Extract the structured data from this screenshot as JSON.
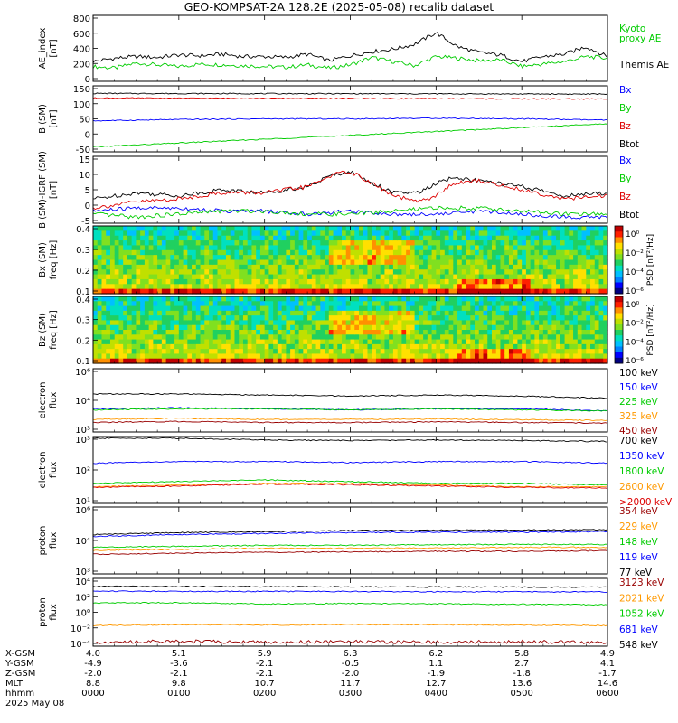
{
  "title": "GEO-KOMPSAT-2A 128.2E (2025-05-08) recalib dataset",
  "colors": {
    "black": "#000000",
    "blue": "#0000ff",
    "green": "#00cc00",
    "red": "#dd0000",
    "orange": "#ff9900",
    "darkred": "#990000",
    "limegreen": "#22dd22"
  },
  "chart_data": [
    {
      "id": "ae",
      "type": "line",
      "ylabel": [
        "AE_index",
        "[nT]"
      ],
      "ylim": [
        0,
        800
      ],
      "yticks": [
        "800",
        "600",
        "400",
        "200",
        "0"
      ],
      "legend": [
        {
          "text": "Kyoto",
          "color": "green"
        },
        {
          "text": "proxy AE",
          "color": "green"
        },
        {
          "text": "Themis AE",
          "color": "black"
        }
      ],
      "series": [
        {
          "name": "Kyoto proxy AE",
          "color": "green",
          "x": [
            0,
            0.25,
            0.5,
            0.75,
            1.0,
            1.25,
            1.5,
            1.75,
            2.0,
            2.25,
            2.5,
            2.75,
            3.0,
            3.25,
            3.5,
            3.75,
            4.0,
            4.25,
            4.5,
            4.75,
            5.0,
            5.25,
            5.5,
            5.75,
            6.0
          ],
          "y": [
            180,
            160,
            220,
            200,
            180,
            210,
            200,
            190,
            180,
            170,
            200,
            160,
            200,
            290,
            240,
            190,
            300,
            280,
            250,
            260,
            180,
            210,
            240,
            300,
            280
          ]
        },
        {
          "name": "Themis AE",
          "color": "black",
          "x": [
            0,
            0.25,
            0.5,
            0.75,
            1.0,
            1.25,
            1.5,
            1.75,
            2.0,
            2.25,
            2.5,
            2.75,
            3.0,
            3.25,
            3.5,
            3.75,
            4.0,
            4.25,
            4.5,
            4.75,
            5.0,
            5.25,
            5.5,
            5.75,
            6.0
          ],
          "y": [
            240,
            280,
            300,
            290,
            320,
            310,
            330,
            300,
            300,
            290,
            330,
            250,
            310,
            360,
            390,
            450,
            590,
            420,
            350,
            320,
            240,
            300,
            330,
            420,
            300
          ]
        }
      ]
    },
    {
      "id": "bsm",
      "type": "line",
      "ylabel": [
        "B (SM)",
        "[nT]"
      ],
      "ylim": [
        -60,
        140
      ],
      "yticks": [
        "150",
        "100",
        "50",
        "0",
        "-50"
      ],
      "legend": [
        {
          "text": "Bx",
          "color": "blue"
        },
        {
          "text": "By",
          "color": "green"
        },
        {
          "text": "Bz",
          "color": "red"
        },
        {
          "text": "Btot",
          "color": "black"
        }
      ],
      "series": [
        {
          "name": "Btot",
          "color": "black",
          "x": [
            0,
            6
          ],
          "y": [
            117,
            115
          ]
        },
        {
          "name": "Bz",
          "color": "red",
          "x": [
            0,
            6
          ],
          "y": [
            103,
            100
          ]
        },
        {
          "name": "Bx",
          "color": "blue",
          "x": [
            0,
            1,
            2,
            3,
            4,
            5,
            6
          ],
          "y": [
            34,
            38,
            40,
            40,
            42,
            40,
            36
          ]
        },
        {
          "name": "By",
          "color": "green",
          "x": [
            0,
            6
          ],
          "y": [
            -45,
            25
          ]
        }
      ]
    },
    {
      "id": "bdiff",
      "type": "line",
      "ylabel": [
        "B (SM)-IGRF (SM)",
        "[nT]"
      ],
      "ylim": [
        -6,
        16
      ],
      "yticks": [
        "15",
        "10",
        "5",
        "0",
        "-5"
      ],
      "legend": [
        {
          "text": "Bx",
          "color": "blue"
        },
        {
          "text": "By",
          "color": "green"
        },
        {
          "text": "Bz",
          "color": "red"
        },
        {
          "text": "Btot",
          "color": "black"
        }
      ],
      "series": [
        {
          "name": "Btot",
          "color": "black",
          "x": [
            0,
            0.5,
            1.0,
            1.5,
            2.0,
            2.5,
            2.8,
            3.0,
            3.2,
            3.5,
            3.8,
            4.0,
            4.2,
            4.5,
            5.0,
            5.5,
            6.0
          ],
          "y": [
            2,
            4,
            3,
            5,
            4,
            6,
            10,
            11,
            8,
            4,
            4,
            7,
            9,
            8,
            6,
            3,
            4
          ]
        },
        {
          "name": "Bz",
          "color": "red",
          "x": [
            0,
            0.5,
            1.0,
            1.5,
            2.0,
            2.5,
            2.8,
            3.0,
            3.2,
            3.5,
            3.8,
            4.0,
            4.2,
            4.5,
            5.0,
            5.5,
            6.0
          ],
          "y": [
            -1,
            1,
            2,
            4,
            4,
            6,
            10,
            11,
            8,
            3,
            1,
            3,
            7,
            8,
            5,
            2,
            3
          ]
        },
        {
          "name": "Bx",
          "color": "blue",
          "x": [
            0,
            0.5,
            1.0,
            1.5,
            2.0,
            2.5,
            3.0,
            3.5,
            4.0,
            4.5,
            5.0,
            5.5,
            6.0
          ],
          "y": [
            -2,
            -1,
            -1,
            -2,
            -2,
            -3,
            -2,
            -3,
            -3,
            -2,
            -3,
            -4,
            -4
          ]
        },
        {
          "name": "By",
          "color": "green",
          "x": [
            0,
            0.5,
            1.0,
            1.5,
            2.0,
            2.5,
            3.0,
            3.5,
            4.0,
            4.5,
            5.0,
            5.5,
            6.0
          ],
          "y": [
            -3,
            -4,
            -3,
            -2,
            -2,
            -3,
            -3,
            -2,
            -1,
            -1,
            -2,
            -3,
            -3
          ]
        }
      ]
    },
    {
      "id": "bxspec",
      "type": "heatmap",
      "ylabel": [
        "Bx (SM)",
        "freq [Hz]"
      ],
      "ylim": [
        0,
        0.5
      ],
      "yticks": [
        "0.4",
        "0.3",
        "0.2",
        "0.1"
      ],
      "colorbar": {
        "label": "PSD [nT²/Hz]",
        "ticks": [
          "10⁰",
          "10⁻²",
          "10⁻⁴",
          "10⁻⁶"
        ]
      }
    },
    {
      "id": "bzspec",
      "type": "heatmap",
      "ylabel": [
        "Bz (SM)",
        "freq [Hz]"
      ],
      "ylim": [
        0,
        0.5
      ],
      "yticks": [
        "0.4",
        "0.3",
        "0.2",
        "0.1"
      ],
      "colorbar": {
        "label": "PSD [nT²/Hz]",
        "ticks": [
          "10⁰",
          "10⁻²",
          "10⁻⁴",
          "10⁻⁶"
        ]
      }
    },
    {
      "id": "ele1",
      "type": "line",
      "log": true,
      "ylabel": [
        "electron",
        "flux"
      ],
      "ylim": [
        3,
        6
      ],
      "yticks": [
        "10⁶",
        "10⁴",
        "10³"
      ],
      "legend": [
        {
          "text": "100 keV",
          "color": "black"
        },
        {
          "text": "150 keV",
          "color": "blue"
        },
        {
          "text": "225 keV",
          "color": "green"
        },
        {
          "text": "325 keV",
          "color": "orange"
        },
        {
          "text": "450 keV",
          "color": "darkred"
        }
      ],
      "series": [
        {
          "name": "100 keV",
          "color": "black",
          "x": [
            0,
            1,
            2,
            3,
            4,
            5,
            6
          ],
          "y": [
            4.8,
            4.8,
            4.75,
            4.7,
            4.75,
            4.7,
            4.6
          ]
        },
        {
          "name": "150 keV",
          "color": "blue",
          "x": [
            0,
            1,
            2,
            3,
            4,
            5,
            6
          ],
          "y": [
            4.1,
            4.15,
            4.1,
            4.05,
            4.1,
            4.1,
            4.0
          ]
        },
        {
          "name": "225 keV",
          "color": "green",
          "x": [
            0,
            1,
            2,
            3,
            4,
            5,
            6
          ],
          "y": [
            4.05,
            4.1,
            4.1,
            4.05,
            4.1,
            4.05,
            4.0
          ]
        },
        {
          "name": "325 keV",
          "color": "orange",
          "x": [
            0,
            1,
            2,
            3,
            4,
            5,
            6
          ],
          "y": [
            3.6,
            3.65,
            3.6,
            3.6,
            3.62,
            3.58,
            3.55
          ]
        },
        {
          "name": "450 keV",
          "color": "darkred",
          "x": [
            0,
            1,
            2,
            3,
            4,
            5,
            6
          ],
          "y": [
            3.45,
            3.5,
            3.45,
            3.45,
            3.48,
            3.45,
            3.42
          ]
        }
      ]
    },
    {
      "id": "ele2",
      "type": "line",
      "log": true,
      "ylabel": [
        "electron",
        "flux"
      ],
      "ylim": [
        1,
        3
      ],
      "yticks": [
        "10³",
        "10²",
        "10¹"
      ],
      "legend": [
        {
          "text": "700 keV",
          "color": "black"
        },
        {
          "text": "1350 keV",
          "color": "blue"
        },
        {
          "text": "1800 keV",
          "color": "green"
        },
        {
          "text": "2600 keV",
          "color": "orange"
        },
        {
          "text": ">2000 keV",
          "color": "red"
        }
      ],
      "series": [
        {
          "name": "700 keV",
          "color": "black",
          "x": [
            0,
            1,
            2,
            3,
            4,
            5,
            6
          ],
          "y": [
            2.95,
            2.95,
            2.9,
            2.88,
            2.9,
            2.88,
            2.85
          ]
        },
        {
          "name": "1350 keV",
          "color": "blue",
          "x": [
            0,
            1,
            2,
            3,
            4,
            5,
            6
          ],
          "y": [
            2.2,
            2.25,
            2.25,
            2.22,
            2.25,
            2.25,
            2.2
          ]
        },
        {
          "name": "1800 keV",
          "color": "green",
          "x": [
            0,
            1,
            2,
            3,
            4,
            5,
            6
          ],
          "y": [
            1.6,
            1.65,
            1.7,
            1.65,
            1.6,
            1.6,
            1.55
          ]
        },
        {
          "name": "2600 keV",
          "color": "orange",
          "x": [
            0,
            1,
            2,
            3,
            4,
            5,
            6
          ],
          "y": [
            1.5,
            1.55,
            1.6,
            1.6,
            1.55,
            1.5,
            1.5
          ]
        },
        {
          "name": ">2000 keV",
          "color": "red",
          "x": [
            0,
            1,
            2,
            3,
            4,
            5,
            6
          ],
          "y": [
            1.48,
            1.52,
            1.58,
            1.56,
            1.52,
            1.48,
            1.46
          ]
        }
      ]
    },
    {
      "id": "pro1",
      "type": "line",
      "log": true,
      "ylabel": [
        "proton",
        "flux"
      ],
      "ylim": [
        2.7,
        6.1
      ],
      "yticks": [
        "10⁶",
        "10⁴",
        "10³"
      ],
      "legend": [
        {
          "text": "354 keV",
          "color": "darkred"
        },
        {
          "text": "229 keV",
          "color": "orange"
        },
        {
          "text": "148 keV",
          "color": "green"
        },
        {
          "text": "119 keV",
          "color": "blue"
        },
        {
          "text": "77 keV",
          "color": "black"
        }
      ],
      "series": [
        {
          "name": "77 keV",
          "color": "black",
          "x": [
            0,
            1,
            2,
            3,
            4,
            5,
            6
          ],
          "y": [
            4.7,
            4.8,
            4.85,
            4.9,
            4.92,
            4.93,
            4.95
          ]
        },
        {
          "name": "119 keV",
          "color": "blue",
          "x": [
            0,
            1,
            2,
            3,
            4,
            5,
            6
          ],
          "y": [
            4.6,
            4.7,
            4.75,
            4.8,
            4.82,
            4.82,
            4.85
          ]
        },
        {
          "name": "148 keV",
          "color": "green",
          "x": [
            0,
            1,
            2,
            3,
            4,
            5,
            6
          ],
          "y": [
            4.05,
            4.1,
            4.15,
            4.15,
            4.18,
            4.2,
            4.2
          ]
        },
        {
          "name": "229 keV",
          "color": "orange",
          "x": [
            0,
            1,
            2,
            3,
            4,
            5,
            6
          ],
          "y": [
            3.9,
            3.95,
            4.0,
            4.0,
            4.02,
            4.05,
            4.05
          ]
        },
        {
          "name": "354 keV",
          "color": "darkred",
          "x": [
            0,
            1,
            2,
            3,
            4,
            5,
            6
          ],
          "y": [
            3.7,
            3.75,
            3.8,
            3.82,
            3.85,
            3.85,
            3.88
          ]
        }
      ]
    },
    {
      "id": "pro2",
      "type": "line",
      "log": true,
      "ylabel": [
        "proton",
        "flux"
      ],
      "ylim": [
        -4.3,
        4.2
      ],
      "yticks": [
        "10⁴",
        "10²",
        "10⁰",
        "10⁻²",
        "10⁻⁴"
      ],
      "legend": [
        {
          "text": "3123 keV",
          "color": "darkred"
        },
        {
          "text": "2021 keV",
          "color": "orange"
        },
        {
          "text": "1052 keV",
          "color": "green"
        },
        {
          "text": "681 keV",
          "color": "blue"
        },
        {
          "text": "548 keV",
          "color": "black"
        }
      ],
      "series": [
        {
          "name": "548 keV",
          "color": "black",
          "x": [
            0,
            6
          ],
          "y": [
            3.2,
            3.1
          ]
        },
        {
          "name": "681 keV",
          "color": "blue",
          "x": [
            0,
            6
          ],
          "y": [
            2.6,
            2.5
          ]
        },
        {
          "name": "1052 keV",
          "color": "green",
          "x": [
            0,
            1,
            2,
            3,
            4,
            5,
            6
          ],
          "y": [
            1.1,
            1.15,
            1.0,
            1.05,
            1.0,
            0.95,
            0.9
          ]
        },
        {
          "name": "2021 keV",
          "color": "orange",
          "x": [
            0,
            1,
            2,
            3,
            4,
            5,
            6
          ],
          "y": [
            -1.7,
            -1.6,
            -1.65,
            -1.6,
            -1.6,
            -1.65,
            -1.7
          ]
        },
        {
          "name": "3123 keV",
          "color": "darkred",
          "x": [
            0,
            1,
            2,
            3,
            4,
            5,
            6
          ],
          "y": [
            -3.8,
            -3.7,
            -3.8,
            -3.75,
            -3.8,
            -3.75,
            -3.8
          ]
        }
      ]
    }
  ],
  "ephemeris": {
    "labels": [
      "X-GSM",
      "Y-GSM",
      "Z-GSM",
      "MLT",
      "hhmm"
    ],
    "date": "2025 May 08",
    "columns": [
      {
        "x": "4.0",
        "y": "-4.9",
        "z": "-2.0",
        "mlt": "8.8",
        "hhmm": "0000"
      },
      {
        "x": "5.1",
        "y": "-3.6",
        "z": "-2.1",
        "mlt": "9.8",
        "hhmm": "0100"
      },
      {
        "x": "5.9",
        "y": "-2.1",
        "z": "-2.1",
        "mlt": "10.7",
        "hhmm": "0200"
      },
      {
        "x": "6.3",
        "y": "-0.5",
        "z": "-2.0",
        "mlt": "11.7",
        "hhmm": "0300"
      },
      {
        "x": "6.2",
        "y": "1.1",
        "z": "-1.9",
        "mlt": "12.7",
        "hhmm": "0400"
      },
      {
        "x": "5.8",
        "y": "2.7",
        "z": "-1.8",
        "mlt": "13.6",
        "hhmm": "0500"
      },
      {
        "x": "4.9",
        "y": "4.1",
        "z": "-1.7",
        "mlt": "14.6",
        "hhmm": "0600"
      }
    ]
  }
}
